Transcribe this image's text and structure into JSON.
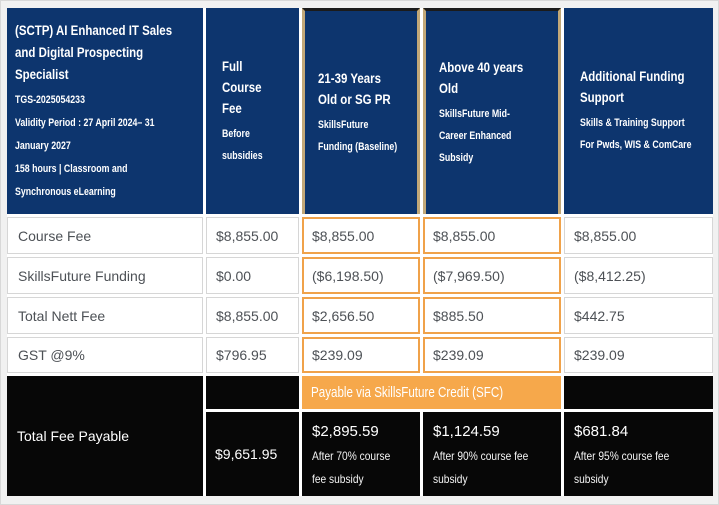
{
  "colors": {
    "navy": "#0d356e",
    "orange_banner": "#f6a84b",
    "orange_border": "#f0a24a",
    "tan_header_border": "#c2a878",
    "footer_black": "#070707",
    "body_text": "#4d5156"
  },
  "header": {
    "course": {
      "title": "(SCTP) AI Enhanced IT Sales\nand Digital Prospecting\nSpecialist",
      "code": "TGS-2025054233",
      "validity": "Validity Period : 27 April 2024– 31\nJanuary 2027",
      "duration": "158 hours | Classroom and\nSynchronous eLearning"
    },
    "columns": [
      {
        "title": "Full\nCourse\nFee",
        "subtitle": "Before\nsubsidies"
      },
      {
        "title": "21-39 Years\nOld or SG PR",
        "subtitle": "SkillsFuture\nFunding (Baseline)"
      },
      {
        "title": "Above 40 years\nOld",
        "subtitle": "SkillsFuture Mid-\nCareer Enhanced\nSubsidy"
      },
      {
        "title": "Additional Funding\nSupport",
        "subtitle": "Skills & Training Support\nFor Pwds, WIS & ComCare"
      }
    ]
  },
  "rows": [
    {
      "label": "Course Fee",
      "values": [
        "$8,855.00",
        "$8,855.00",
        "$8,855.00",
        "$8,855.00"
      ]
    },
    {
      "label": "SkillsFuture Funding",
      "values": [
        "$0.00",
        "($6,198.50)",
        "($7,969.50)",
        "($8,412.25)"
      ]
    },
    {
      "label": "Total Nett Fee",
      "values": [
        "$8,855.00",
        "$2,656.50",
        "$885.50",
        "$442.75"
      ]
    },
    {
      "label": "GST @9%",
      "values": [
        "$796.95",
        "$239.09",
        "$239.09",
        "$239.09"
      ]
    }
  ],
  "footer": {
    "label": "Total Fee Payable",
    "full_fee": "$9,651.95",
    "banner": "Payable via SkillsFuture Credit (SFC)",
    "values": [
      {
        "amount": "$2,895.59",
        "note": "After 70% course\nfee subsidy"
      },
      {
        "amount": "$1,124.59",
        "note": "After 90% course fee\nsubsidy"
      },
      {
        "amount": "$681.84",
        "note": "After 95% course fee\nsubsidy"
      }
    ]
  }
}
